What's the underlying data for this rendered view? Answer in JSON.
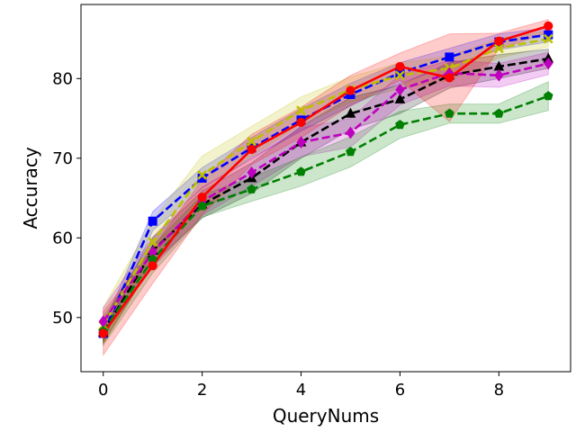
{
  "chart_data": {
    "type": "line",
    "title": "",
    "xlabel": "QueryNums",
    "ylabel": "Accuracy",
    "xlim": [
      -0.45,
      9.45
    ],
    "ylim": [
      43.2,
      89.3
    ],
    "xticks": [
      0,
      2,
      4,
      6,
      8
    ],
    "yticks": [
      50,
      60,
      70,
      80
    ],
    "grid": false,
    "legend": "none",
    "x": [
      0,
      1,
      2,
      3,
      4,
      5,
      6,
      7,
      8,
      9
    ],
    "series": [
      {
        "color": "#0000ff",
        "dash": "dashed",
        "marker": "square",
        "values": [
          48.0,
          62.1,
          67.5,
          71.3,
          74.8,
          78.0,
          80.7,
          82.7,
          84.6,
          85.5
        ],
        "lower": [
          47.0,
          60.9,
          66.2,
          70.0,
          73.4,
          76.6,
          79.4,
          81.6,
          83.6,
          84.6
        ],
        "upper": [
          49.0,
          63.3,
          68.8,
          72.6,
          76.2,
          79.4,
          82.0,
          83.8,
          85.6,
          86.4
        ]
      },
      {
        "color": "#bfbf00",
        "dash": "dashed",
        "marker": "x",
        "values": [
          49.0,
          59.5,
          67.9,
          72.1,
          76.0,
          78.6,
          80.4,
          81.3,
          83.8,
          85.0
        ],
        "lower": [
          46.7,
          56.8,
          65.5,
          70.2,
          74.3,
          77.0,
          78.8,
          79.8,
          82.6,
          84.0
        ],
        "upper": [
          51.3,
          62.2,
          70.3,
          74.0,
          77.7,
          80.2,
          82.0,
          82.8,
          85.0,
          86.0
        ]
      },
      {
        "color": "#000000",
        "dash": "dashed",
        "marker": "triangle",
        "values": [
          48.1,
          58.4,
          64.2,
          67.5,
          72.0,
          75.6,
          77.4,
          80.4,
          81.5,
          82.5
        ],
        "lower": [
          46.8,
          56.8,
          62.5,
          65.6,
          70.0,
          73.6,
          75.6,
          78.8,
          80.0,
          81.3
        ],
        "upper": [
          49.4,
          60.0,
          65.9,
          69.4,
          74.0,
          77.6,
          79.2,
          82.0,
          83.0,
          83.7
        ]
      },
      {
        "color": "#bf00bf",
        "dash": "dashed",
        "marker": "diamond",
        "values": [
          49.5,
          58.2,
          64.6,
          68.2,
          72.0,
          73.2,
          78.6,
          80.7,
          80.4,
          81.9
        ],
        "lower": [
          47.8,
          56.3,
          62.8,
          66.5,
          70.2,
          71.4,
          76.7,
          79.1,
          78.9,
          80.5
        ],
        "upper": [
          51.2,
          60.1,
          66.4,
          69.9,
          73.8,
          75.0,
          80.5,
          82.3,
          81.9,
          83.3
        ]
      },
      {
        "color": "#008000",
        "dash": "dashed",
        "marker": "pentagon",
        "values": [
          48.3,
          57.3,
          64.0,
          66.1,
          68.3,
          70.8,
          74.2,
          75.6,
          75.6,
          77.8
        ],
        "lower": [
          46.5,
          55.6,
          62.6,
          64.6,
          66.5,
          68.9,
          72.5,
          74.4,
          74.4,
          76.0
        ],
        "upper": [
          50.1,
          59.0,
          65.4,
          67.6,
          70.1,
          72.7,
          75.9,
          76.8,
          76.8,
          79.6
        ]
      },
      {
        "color": "#ff0000",
        "dash": "solid",
        "marker": "circle",
        "values": [
          48.0,
          56.5,
          65.1,
          71.1,
          74.5,
          78.5,
          81.5,
          80.1,
          84.7,
          86.6
        ],
        "lower": [
          45.3,
          54.3,
          62.9,
          69.2,
          72.6,
          76.6,
          79.8,
          74.6,
          83.7,
          85.8
        ],
        "upper": [
          50.7,
          58.7,
          67.3,
          73.0,
          76.4,
          80.4,
          83.2,
          85.6,
          85.7,
          87.4
        ]
      }
    ]
  }
}
